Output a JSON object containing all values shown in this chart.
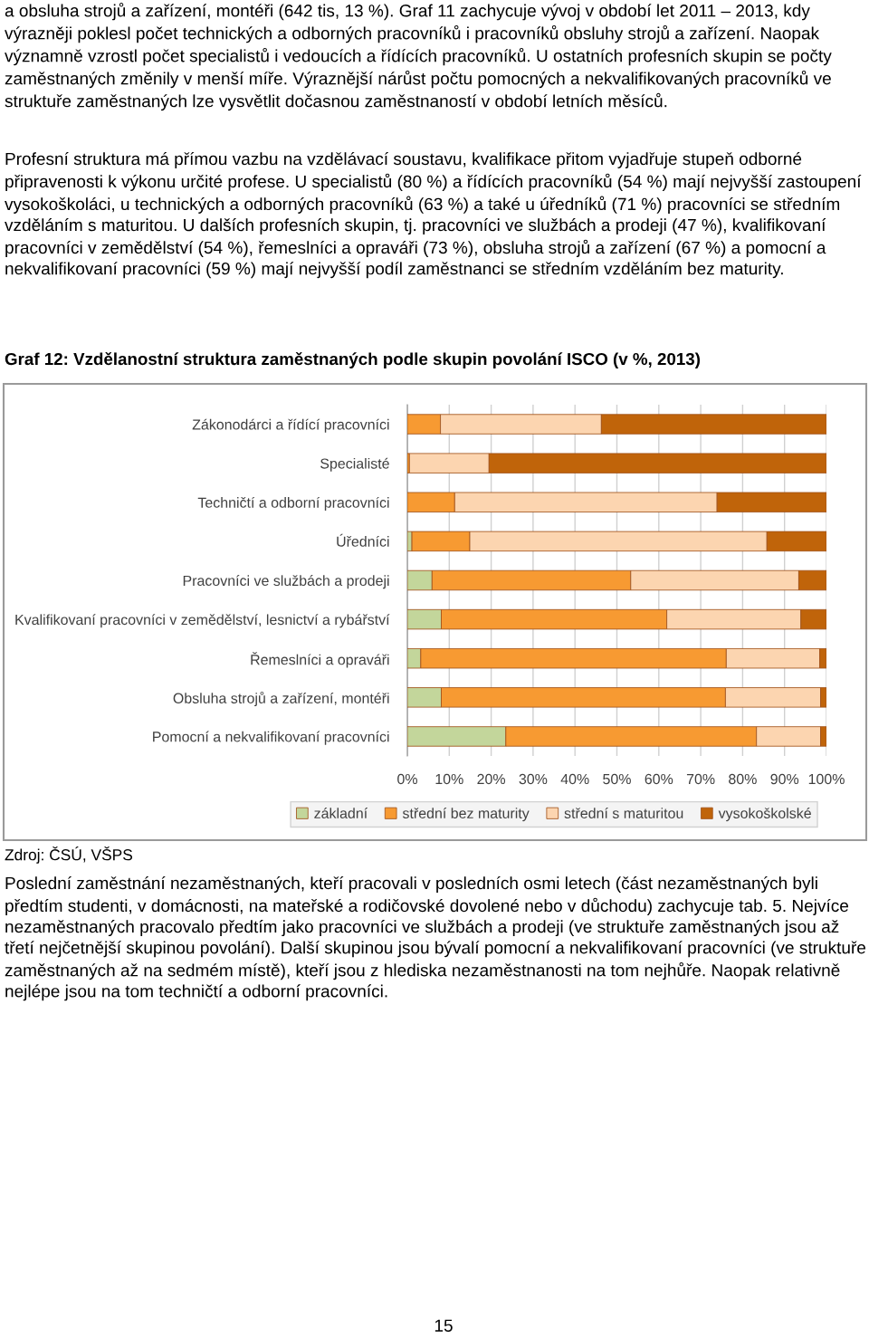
{
  "chart_data": {
    "type": "bar",
    "orientation": "horizontal",
    "stacked": true,
    "title": "Graf 12: Vzdělanostní struktura zaměstnaných podle skupin povolání ISCO (v %, 2013)",
    "categories": [
      "Zákonodárci a řídící pracovníci",
      "Specialisté",
      "Techničtí a odborní pracovníci",
      "Úředníci",
      "Pracovníci ve službách a prodeji",
      "Kvalifikovaní pracovníci v zemědělství, lesnictví a rybářství",
      "Řemeslníci a opraváři",
      "Obsluha strojů a zařízení, montéři",
      "Pomocní a nekvalifikovaní pracovníci"
    ],
    "series": [
      {
        "name": "základní",
        "color": "#c3d69b",
        "values": [
          null,
          null,
          null,
          1.1,
          5.9,
          8.1,
          3.2,
          8.1,
          23.5
        ]
      },
      {
        "name": "střední bez maturity",
        "color": "#f79a32",
        "values": [
          7.9,
          0.5,
          11.3,
          13.8,
          47.4,
          53.8,
          72.9,
          67.8,
          59.8
        ]
      },
      {
        "name": "střední s maturitou",
        "color": "#fcd5b0",
        "values": [
          38.4,
          19.0,
          62.6,
          70.9,
          40.1,
          32.0,
          22.3,
          22.7,
          15.3
        ]
      },
      {
        "name": "vysokoškolské",
        "color": "#c0640a",
        "values": [
          53.7,
          80.5,
          26.1,
          14.2,
          6.6,
          6.1,
          1.6,
          1.4,
          1.4
        ]
      }
    ],
    "xlim": [
      0,
      100
    ],
    "xticks": [
      {
        "value": 0,
        "label": "0%"
      },
      {
        "value": 10,
        "label": "10%"
      },
      {
        "value": 20,
        "label": "20%"
      },
      {
        "value": 30,
        "label": "30%"
      },
      {
        "value": 40,
        "label": "40%"
      },
      {
        "value": 50,
        "label": "50%"
      },
      {
        "value": 60,
        "label": "60%"
      },
      {
        "value": 70,
        "label": "70%"
      },
      {
        "value": 80,
        "label": "80%"
      },
      {
        "value": 90,
        "label": "90%"
      },
      {
        "value": 100,
        "label": "100%"
      }
    ],
    "grid": "x",
    "legend": "bottom",
    "annotations": [
      "a obsluha strojů a zařízení, montéři (642 tis, 13 %). Graf 11 zachycuje vývoj v období let 2011 – 2013, kdy výrazněji poklesl počet technických a odborných pracovníků i pracovníků obsluhy strojů a zařízení. Naopak významně vzrostl počet specialistů i vedoucích a řídících pracovníků. U ostatních profesních skupin se počty zaměstnaných změnily v menší míře. Výraznější nárůst počtu pomocných a nekvalifikovaných pracovníků ve struktuře zaměstnaných lze vysvětlit dočasnou zaměstnaností v období letních měsíců.",
      "Profesní struktura má přímou vazbu na vzdělávací soustavu, kvalifikace přitom vyjadřuje stupeň odborné připravenosti k výkonu určité profese. U specialistů (80 %) a řídících pracovníků (54 %) mají nejvyšší zastoupení vysokoškoláci, u technických a odborných pracovníků (63 %) a také u úředníků (71 %) pracovníci se středním vzděláním s maturitou. U dalších profesních skupin, tj. pracovníci ve službách a prodeji (47 %), kvalifikovaní pracovníci v zemědělství (54 %), řemeslníci a opraváři (73 %), obsluha strojů a zařízení (67 %) a pomocní a nekvalifikovaní pracovníci (59 %) mají nejvyšší podíl zaměstnanci se středním vzděláním bez maturity.",
      "Zdroj: ČSÚ, VŠPS",
      "Poslední zaměstnání nezaměstnaných, kteří pracovali v posledních osmi letech (část nezaměstnaných byli předtím studenti, v domácnosti, na mateřské a rodičovské dovolené nebo v důchodu) zachycuje tab. 5. Nejvíce nezaměstnaných pracovalo předtím jako pracovníci ve službách a prodeji (ve struktuře zaměstnaných jsou až třetí nejčetnější skupinou povolání). Další skupinou jsou bývalí pomocní a nekvalifikovaní pracovníci (ve struktuře zaměstnaných až na sedmém místě), kteří jsou z hlediska nezaměstnanosti na tom nejhůře. Naopak relativně nejlépe jsou na tom techničtí a odborní pracovníci.",
      "15"
    ]
  }
}
